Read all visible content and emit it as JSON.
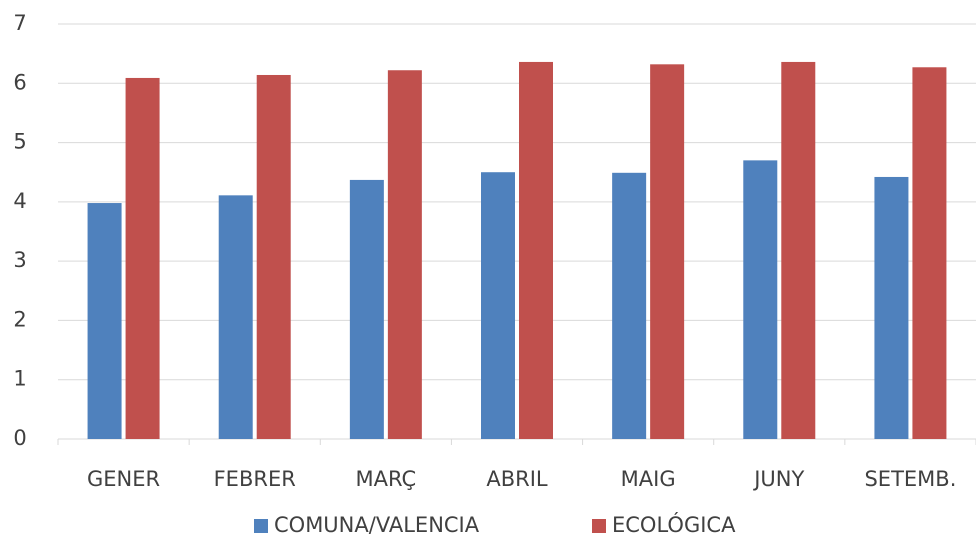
{
  "chart_data": {
    "type": "bar",
    "categories": [
      "GENER",
      "FEBRER",
      "MARÇ",
      "ABRIL",
      "MAIG",
      "JUNY",
      "SETEMB."
    ],
    "series": [
      {
        "name": "COMUNA/VALENCIA",
        "color": "#4f81bd",
        "values": [
          3.98,
          4.11,
          4.37,
          4.5,
          4.49,
          4.7,
          4.42
        ]
      },
      {
        "name": "ECOLÓGICA",
        "color": "#c0504d",
        "values": [
          6.09,
          6.14,
          6.22,
          6.36,
          6.32,
          6.36,
          6.27
        ]
      }
    ],
    "ylim": [
      0,
      7
    ],
    "yticks": [
      0,
      1,
      2,
      3,
      4,
      5,
      6,
      7
    ],
    "grid": true,
    "legend": "bottom"
  }
}
